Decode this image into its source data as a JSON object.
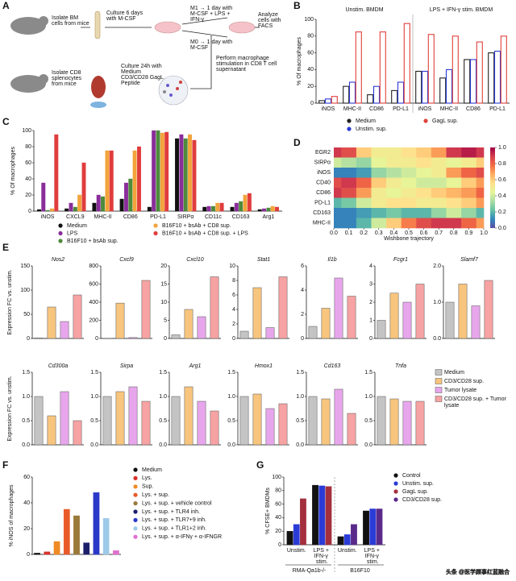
{
  "diagram": {
    "panel": "A",
    "steps": [
      "Isolate BM cells from mice",
      "Culture 6 days with M-CSF",
      "M1 → 1 day with M-CSF + LPS + IFN-γ",
      "M0 → 1 day with M-CSF",
      "Analyze cells with FACS",
      "Isolate CD8 splenocytes from mice",
      "Culture 24h with Medium CD3/CD28 GagL Peptide",
      "Perform macrophage stimulation in CD8 T cell supernatant"
    ]
  },
  "watermark": "头条 @医学顾事红蓝融合",
  "chart_data": [
    {
      "panel": "B",
      "type": "bar",
      "style": "outline",
      "group_labels": [
        "Unstim. BMDM",
        "LPS + IFN-γ stim. BMDM"
      ],
      "ylabel": "% Of macrophages",
      "categories": [
        "iNOS",
        "MHC-II",
        "CD86",
        "PD-L1",
        "iNOS",
        "MHC-II",
        "CD86",
        "PD-L1"
      ],
      "series": [
        {
          "name": "Medium",
          "color": "#222222",
          "values": [
            3,
            20,
            10,
            15,
            38,
            30,
            52,
            60
          ]
        },
        {
          "name": "Unstim. sup.",
          "color": "#2a3bd6",
          "values": [
            5,
            25,
            20,
            25,
            38,
            40,
            52,
            62
          ]
        },
        {
          "name": "GagL sup.",
          "color": "#e0413c",
          "values": [
            8,
            85,
            85,
            95,
            82,
            80,
            73,
            80
          ]
        }
      ],
      "ylim": [
        0,
        100
      ],
      "yticks": [
        0,
        20,
        40,
        60,
        80,
        100
      ]
    },
    {
      "panel": "C",
      "type": "bar",
      "style": "filled",
      "ylabel": "% Of macrophages",
      "categories": [
        "iNOS",
        "CXCL9",
        "MHC-II",
        "CD86",
        "PD-L1",
        "SIRPα",
        "CD11c",
        "CD163",
        "Arg1"
      ],
      "series": [
        {
          "name": "Medium",
          "color": "#111111",
          "values": [
            2,
            3,
            10,
            15,
            5,
            90,
            5,
            5,
            2
          ]
        },
        {
          "name": "LPS",
          "color": "#8a2d9a",
          "values": [
            35,
            10,
            20,
            35,
            100,
            95,
            6,
            10,
            3
          ]
        },
        {
          "name": "B16F10 + bsAb sup.",
          "color": "#4d8a3c",
          "values": [
            1,
            5,
            18,
            40,
            100,
            90,
            6,
            12,
            4
          ]
        },
        {
          "name": "B16F10 + bsAb + CD8 sup.",
          "color": "#f2a33a",
          "values": [
            3,
            20,
            75,
            75,
            97,
            95,
            10,
            20,
            6
          ]
        },
        {
          "name": "B16F10 + bsAb + CD8 sup. + LPS",
          "color": "#e03c3c",
          "values": [
            95,
            60,
            75,
            80,
            98,
            88,
            10,
            22,
            5
          ]
        }
      ],
      "ylim": [
        0,
        100
      ],
      "yticks": [
        0,
        20,
        40,
        60,
        80,
        100
      ]
    },
    {
      "panel": "D",
      "type": "heatmap",
      "xlabel": "Wishbone trajectory",
      "rows": [
        "EGR2",
        "SIRPα",
        "iNOS",
        "CD40",
        "CD86",
        "PD-L1",
        "CD163",
        "MHC-II"
      ],
      "x": [
        0,
        0.1,
        0.2,
        0.3,
        0.4,
        0.5,
        0.6,
        0.7,
        0.8,
        0.9,
        1
      ],
      "values": [
        [
          0.9,
          0.85,
          0.6,
          0.5,
          0.5,
          0.55,
          0.6,
          0.7,
          0.9,
          0.95,
          0.9
        ],
        [
          0.4,
          0.35,
          0.3,
          0.45,
          0.5,
          0.5,
          0.55,
          0.5,
          0.45,
          0.5,
          0.6
        ],
        [
          0.1,
          0.1,
          0.15,
          0.3,
          0.35,
          0.4,
          0.45,
          0.5,
          0.7,
          0.8,
          0.85
        ],
        [
          0.85,
          0.9,
          0.8,
          0.6,
          0.5,
          0.45,
          0.4,
          0.4,
          0.45,
          0.6,
          0.7
        ],
        [
          0.9,
          0.85,
          0.7,
          0.5,
          0.45,
          0.5,
          0.55,
          0.6,
          0.65,
          0.7,
          0.8
        ],
        [
          0.2,
          0.25,
          0.4,
          0.5,
          0.55,
          0.55,
          0.5,
          0.5,
          0.55,
          0.6,
          0.7
        ],
        [
          0.1,
          0.1,
          0.15,
          0.2,
          0.25,
          0.2,
          0.2,
          0.3,
          0.4,
          0.3,
          0.2
        ],
        [
          0.1,
          0.1,
          0.2,
          0.4,
          0.6,
          0.75,
          0.85,
          0.9,
          0.9,
          0.8,
          0.7
        ]
      ],
      "xlim": [
        0,
        1
      ],
      "xticks": [
        {
          "value": 0,
          "label": "0.0"
        },
        0.1,
        0.2,
        0.3,
        0.4,
        0.5,
        0.6,
        0.7,
        0.8,
        0.9,
        {
          "value": 1,
          "label": "1.0"
        }
      ],
      "clim": [
        0,
        1
      ],
      "cticks": [
        {
          "value": 0,
          "label": "0.0"
        },
        0.2,
        0.4,
        0.6,
        0.8,
        {
          "value": 1,
          "label": "1.0"
        }
      ],
      "colormap": [
        "#5e4fa2",
        "#3288bd",
        "#66c2a5",
        "#abdda4",
        "#e6f598",
        "#fee08b",
        "#fdae61",
        "#f46d43",
        "#d53e4f",
        "#9e0142"
      ]
    },
    {
      "panel": "E",
      "type": "bar-panels",
      "ylabel": "Expression FC vs. unstim.",
      "legend": [
        "Medium",
        "CD3/CD28 sup.",
        "Tumor lysate",
        "CD3/CD28 sup. + Tumor lysate"
      ],
      "colors": [
        "#c4c4c4",
        "#f7c57e",
        "#e7a6ec",
        "#f7a3a3"
      ],
      "panels": [
        {
          "title": "Nos2",
          "values": [
            1,
            65,
            35,
            90
          ],
          "ylim": [
            0,
            150
          ],
          "yticks": [
            0,
            50,
            100,
            150
          ]
        },
        {
          "title": "Cxcl9",
          "values": [
            1,
            390,
            10,
            640
          ],
          "ylim": [
            0,
            800
          ],
          "yticks": [
            0,
            200,
            400,
            600,
            800
          ]
        },
        {
          "title": "Cxcl10",
          "values": [
            1,
            8,
            6,
            17
          ],
          "ylim": [
            0,
            20
          ],
          "yticks": [
            0,
            5,
            10,
            15,
            20
          ]
        },
        {
          "title": "Stat1",
          "values": [
            1,
            7,
            1.5,
            8.5
          ],
          "ylim": [
            0,
            10
          ],
          "yticks": [
            0,
            2,
            4,
            6,
            8,
            10
          ]
        },
        {
          "title": "Il1b",
          "values": [
            1,
            2.5,
            5,
            3.5
          ],
          "ylim": [
            0,
            6
          ],
          "yticks": [
            0,
            2,
            4,
            6
          ]
        },
        {
          "title": "Fcgr1",
          "values": [
            1,
            2.5,
            2,
            3
          ],
          "ylim": [
            0,
            4
          ],
          "yticks": [
            0,
            1,
            2,
            3,
            4
          ]
        },
        {
          "title": "Slamf7",
          "values": [
            1,
            1.5,
            0.9,
            1.6
          ],
          "ylim": [
            0,
            2
          ],
          "yticks": [
            {
              "value": 0,
              "label": "0.0"
            },
            {
              "value": 1,
              "label": "1.0"
            },
            {
              "value": 2,
              "label": "2.0"
            }
          ]
        },
        {
          "title": "Cd300a",
          "values": [
            1,
            0.6,
            1.1,
            0.5
          ],
          "ylim": [
            0,
            1.5
          ],
          "yticks": [
            {
              "value": 0,
              "label": "0.0"
            },
            0.5,
            {
              "value": 1,
              "label": "1.0"
            },
            1.5
          ]
        },
        {
          "title": "Sirpa",
          "values": [
            1,
            1.1,
            1.2,
            0.9
          ],
          "ylim": [
            0,
            1.5
          ],
          "yticks": [
            {
              "value": 0,
              "label": "0.0"
            },
            0.5,
            {
              "value": 1,
              "label": "1.0"
            },
            1.5
          ]
        },
        {
          "title": "Arg1",
          "values": [
            1,
            1.2,
            0.9,
            0.7
          ],
          "ylim": [
            0,
            1.5
          ],
          "yticks": [
            {
              "value": 0,
              "label": "0.0"
            },
            0.5,
            {
              "value": 1,
              "label": "1.0"
            },
            1.5
          ]
        },
        {
          "title": "Hmox1",
          "values": [
            1,
            1.05,
            0.75,
            0.85
          ],
          "ylim": [
            0,
            1.5
          ],
          "yticks": [
            {
              "value": 0,
              "label": "0.0"
            },
            0.5,
            {
              "value": 1,
              "label": "1.0"
            },
            1.5
          ]
        },
        {
          "title": "Cd163",
          "values": [
            1,
            0.95,
            1.15,
            0.65
          ],
          "ylim": [
            0,
            1.5
          ],
          "yticks": [
            {
              "value": 0,
              "label": "0.0"
            },
            0.5,
            {
              "value": 1,
              "label": "1.0"
            },
            1.5
          ]
        },
        {
          "title": "Tnfa",
          "values": [
            1,
            0.95,
            0.9,
            0.9
          ],
          "ylim": [
            0,
            1.5
          ],
          "yticks": [
            {
              "value": 0,
              "label": "0.0"
            },
            0.5,
            {
              "value": 1,
              "label": "1.0"
            },
            1.5
          ]
        }
      ]
    },
    {
      "panel": "F",
      "type": "bar-single",
      "ylabel": "% iNOS of macrophages",
      "categories": [
        "Medium",
        "Lys.",
        "Sup.",
        "Lys. + sup.",
        "Lys. + sup. + vehicle control",
        "Lys. + sup. + TLR4 inh.",
        "Lys. + sup. + TLR7+9 inh.",
        "Lys. + sup. + TLR1+2 inh.",
        "Lys. + sup. + α-IFNγ + α-IFNGR"
      ],
      "colors": [
        "#111111",
        "#d8312c",
        "#f08a24",
        "#e85a28",
        "#9a7a3a",
        "#1b1f6b",
        "#2b39c8",
        "#9ecae8",
        "#e070d0"
      ],
      "values": [
        1,
        2,
        10,
        35,
        30,
        9,
        48,
        28,
        3
      ],
      "ylim": [
        0,
        60
      ],
      "yticks": [
        0,
        20,
        40,
        60
      ]
    },
    {
      "panel": "G",
      "type": "bar",
      "style": "filled",
      "ylabel": "% CFSE+ BMDMs",
      "categories": [
        "Unstim.",
        "LPS + IFN-γ stim.",
        "Unstim.",
        "LPS + IFN-γ stim."
      ],
      "group_labels": [
        "RMA-Qa1b-/-",
        "B16F10"
      ],
      "series": [
        {
          "name": "Control",
          "color": "#111111",
          "values": [
            20,
            88,
            12,
            50
          ]
        },
        {
          "name": "Unstim. sup.",
          "color": "#2a3bd6",
          "values": [
            30,
            87,
            15,
            53
          ]
        },
        {
          "name": "GagL sup.",
          "color": "#a3303c",
          "values": [
            68,
            86,
            null,
            null
          ]
        },
        {
          "name": "CD3/CD28 sup.",
          "color": "#5a2a8a",
          "values": [
            null,
            null,
            30,
            53
          ]
        }
      ],
      "ylim": [
        0,
        100
      ],
      "yticks": [
        0,
        20,
        40,
        60,
        80,
        100
      ]
    }
  ]
}
